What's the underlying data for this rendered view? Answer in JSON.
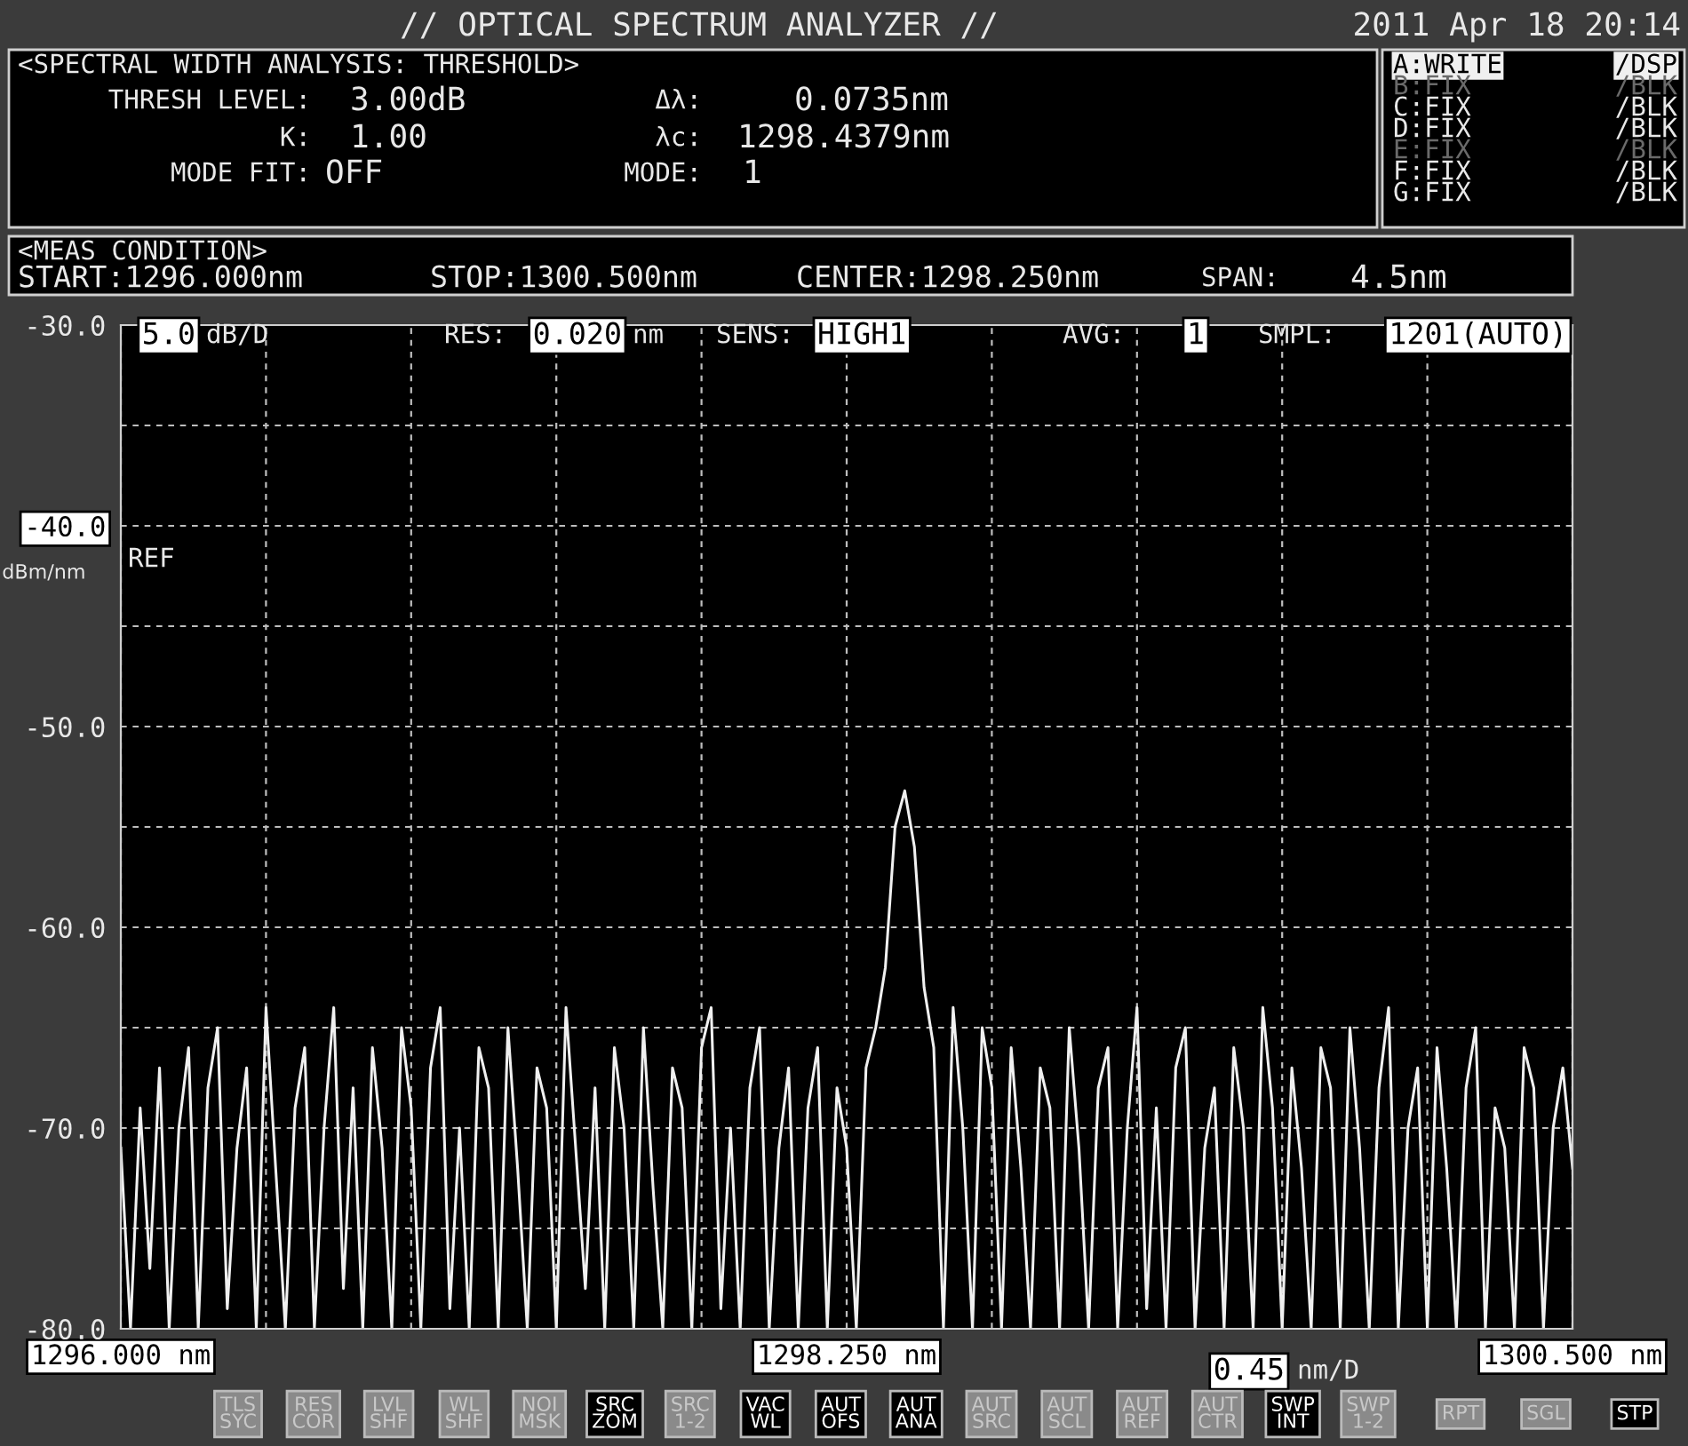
{
  "chart_data": {
    "type": "line",
    "title": "// OPTICAL SPECTRUM ANALYZER //",
    "subtitle": "2011 Apr 18 20:14",
    "ylabel": "dBm/nm",
    "x": [
      1296.0,
      1296.03,
      1296.06,
      1296.09,
      1296.12,
      1296.15,
      1296.18,
      1296.21,
      1296.24,
      1296.27,
      1296.3,
      1296.33,
      1296.36,
      1296.39,
      1296.42,
      1296.45,
      1296.48,
      1296.51,
      1296.54,
      1296.57,
      1296.6,
      1296.63,
      1296.66,
      1296.69,
      1296.72,
      1296.75,
      1296.78,
      1296.81,
      1296.84,
      1296.87,
      1296.9,
      1296.93,
      1296.96,
      1296.99,
      1297.02,
      1297.05,
      1297.08,
      1297.11,
      1297.14,
      1297.17,
      1297.2,
      1297.23,
      1297.26,
      1297.29,
      1297.32,
      1297.35,
      1297.38,
      1297.41,
      1297.44,
      1297.47,
      1297.5,
      1297.53,
      1297.56,
      1297.59,
      1297.62,
      1297.65,
      1297.68,
      1297.71,
      1297.74,
      1297.77,
      1297.8,
      1297.83,
      1297.86,
      1297.89,
      1297.92,
      1297.95,
      1297.98,
      1298.01,
      1298.04,
      1298.07,
      1298.1,
      1298.13,
      1298.16,
      1298.19,
      1298.22,
      1298.25,
      1298.28,
      1298.31,
      1298.34,
      1298.37,
      1298.4,
      1298.43,
      1298.46,
      1298.49,
      1298.52,
      1298.55,
      1298.58,
      1298.61,
      1298.64,
      1298.67,
      1298.7,
      1298.73,
      1298.76,
      1298.79,
      1298.82,
      1298.85,
      1298.88,
      1298.91,
      1298.94,
      1298.97,
      1299.0,
      1299.03,
      1299.06,
      1299.09,
      1299.12,
      1299.15,
      1299.18,
      1299.21,
      1299.24,
      1299.27,
      1299.3,
      1299.33,
      1299.36,
      1299.39,
      1299.42,
      1299.45,
      1299.48,
      1299.51,
      1299.54,
      1299.57,
      1299.6,
      1299.63,
      1299.66,
      1299.69,
      1299.72,
      1299.75,
      1299.78,
      1299.81,
      1299.84,
      1299.87,
      1299.9,
      1299.93,
      1299.96,
      1299.99,
      1300.02,
      1300.05,
      1300.08,
      1300.11,
      1300.14,
      1300.17,
      1300.2,
      1300.23,
      1300.26,
      1300.29,
      1300.32,
      1300.35,
      1300.38,
      1300.41,
      1300.44,
      1300.47,
      1300.5
    ],
    "series": [
      {
        "color": "#f0f0f0",
        "line_style": "solid",
        "values": [
          -71,
          -80,
          -69,
          -77,
          -67,
          -80,
          -70,
          -66,
          -80,
          -68,
          -65,
          -79,
          -71,
          -67,
          -80,
          -64,
          -72,
          -80,
          -69,
          -66,
          -80,
          -70,
          -64,
          -78,
          -68,
          -80,
          -66,
          -71,
          -80,
          -65,
          -69,
          -80,
          -67,
          -64,
          -79,
          -70,
          -80,
          -66,
          -68,
          -80,
          -65,
          -72,
          -80,
          -67,
          -69,
          -80,
          -64,
          -71,
          -78,
          -68,
          -80,
          -66,
          -70,
          -80,
          -65,
          -73,
          -80,
          -67,
          -69,
          -80,
          -66,
          -64,
          -79,
          -70,
          -80,
          -68,
          -65,
          -80,
          -71,
          -67,
          -80,
          -69,
          -66,
          -80,
          -68,
          -71,
          -80,
          -67,
          -65,
          -62,
          -55,
          -53.2,
          -56,
          -63,
          -66,
          -80,
          -64,
          -70,
          -80,
          -65,
          -68,
          -80,
          -66,
          -72,
          -80,
          -67,
          -69,
          -80,
          -65,
          -71,
          -80,
          -68,
          -66,
          -80,
          -70,
          -64,
          -79,
          -69,
          -80,
          -67,
          -65,
          -80,
          -71,
          -68,
          -80,
          -66,
          -70,
          -80,
          -64,
          -69,
          -80,
          -67,
          -72,
          -80,
          -66,
          -68,
          -80,
          -65,
          -71,
          -80,
          -68,
          -64,
          -80,
          -70,
          -67,
          -80,
          -66,
          -72,
          -80,
          -68,
          -65,
          -80,
          -69,
          -71,
          -80,
          -66,
          -68,
          -80,
          -70,
          -67,
          -72
        ]
      }
    ],
    "xlim": [
      1296.0,
      1300.5
    ],
    "xticks": [
      {
        "value": 1296.0,
        "label": "1296.000 nm"
      },
      {
        "value": 1296.45,
        "label": null
      },
      {
        "value": 1296.9,
        "label": null
      },
      {
        "value": 1297.35,
        "label": null
      },
      {
        "value": 1297.8,
        "label": null
      },
      {
        "value": 1298.25,
        "label": "1298.250 nm"
      },
      {
        "value": 1298.7,
        "label": null
      },
      {
        "value": 1299.15,
        "label": null
      },
      {
        "value": 1299.6,
        "label": null
      },
      {
        "value": 1300.05,
        "label": null
      },
      {
        "value": 1300.5,
        "label": "1300.500 nm"
      }
    ],
    "ylim": [
      -80,
      -30
    ],
    "yticks": [
      {
        "value": -30,
        "label": "-30.0"
      },
      {
        "value": -35,
        "label": null
      },
      {
        "value": -40,
        "label": "-40.0"
      },
      {
        "value": -45,
        "label": null
      },
      {
        "value": -50,
        "label": "-50.0"
      },
      {
        "value": -55,
        "label": null
      },
      {
        "value": -60,
        "label": "-60.0"
      },
      {
        "value": -65,
        "label": null
      },
      {
        "value": -70,
        "label": "-70.0"
      },
      {
        "value": -75,
        "label": null
      },
      {
        "value": -80,
        "label": "-80.0"
      }
    ],
    "grid": true,
    "annotations": [
      "<SPECTRAL WIDTH ANALYSIS: THRESHOLD>",
      "THRESH LEVEL:",
      "3.00dB",
      "K:",
      "1.00",
      "MODE FIT:",
      "OFF",
      "Δλ:",
      "0.0735nm",
      "λc:",
      "1298.4379nm",
      "MODE:",
      "1",
      "A:WRITE",
      "/DSP",
      "B:FIX",
      "/BLK",
      "C:FIX",
      "/BLK",
      "D:FIX",
      "/BLK",
      "E:FIX",
      "/BLK",
      "F:FIX",
      "/BLK",
      "G:FIX",
      "/BLK",
      "<MEAS CONDITION>",
      "START:1296.000nm",
      "STOP:1300.500nm",
      "CENTER:1298.250nm",
      "SPAN:",
      "4.5nm",
      "5.0",
      "dB/D",
      "RES:",
      "0.020",
      "nm",
      "SENS:",
      "HIGH1",
      "AVG:",
      "1",
      "SMPL:",
      "1201(AUTO)",
      "REF",
      "0.45",
      "nm/D",
      "TLS\nSYC",
      "RES\nCOR",
      "LVL\nSHF",
      "WL\nSHF",
      "NOI\nMSK",
      "SRC\nZOM",
      "SRC\n1-2",
      "VAC\nWL",
      "AUT\nOFS",
      "AUT\nANA",
      "AUT\nSRC",
      "AUT\nSCL",
      "AUT\nREF",
      "AUT\nCTR",
      "SWP\nINT",
      "SWP\n1-2",
      "RPT",
      "SGL",
      "STP"
    ]
  }
}
